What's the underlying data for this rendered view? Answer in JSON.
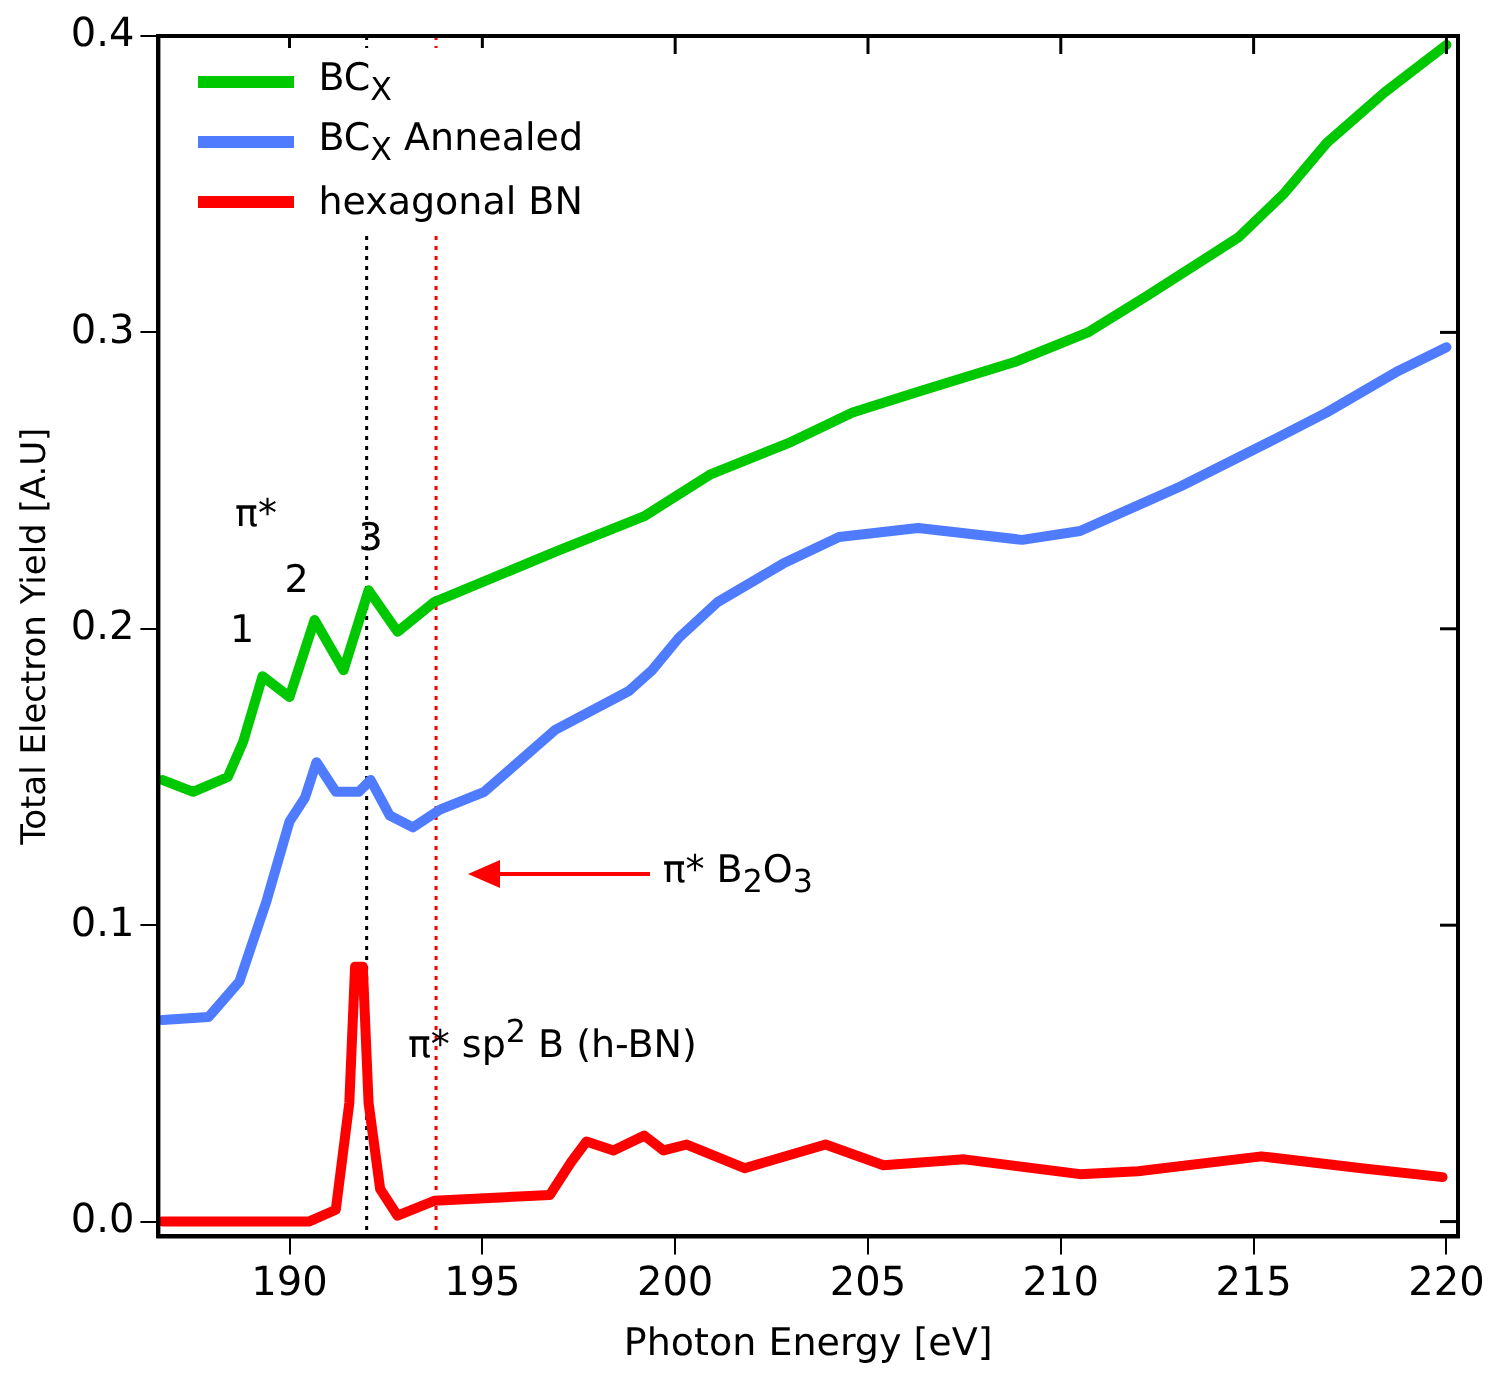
{
  "chart_data": {
    "type": "line",
    "xlabel": "Photon Energy [eV]",
    "ylabel": "Total Electron Yield [A.U]",
    "xlim": [
      186.6,
      220.3
    ],
    "ylim": [
      -0.005,
      0.4
    ],
    "xticks": [
      190,
      195,
      200,
      205,
      210,
      215,
      220
    ],
    "yticks": [
      {
        "value": 0,
        "label": "0.0"
      },
      0.1,
      0.2,
      0.3,
      0.4
    ],
    "grid": false,
    "legend": "top left",
    "marker": "none",
    "line_style": "solid",
    "series": [
      {
        "name": "BC$_{X}$",
        "color": "#00c800",
        "x": [
          186.7,
          187.5,
          188.4,
          188.8,
          189.3,
          190.0,
          190.65,
          191.4,
          192.05,
          192.8,
          193.75,
          196.9,
          199.2,
          200.9,
          203.0,
          204.6,
          206.3,
          208.8,
          210.7,
          212.2,
          214.6,
          215.8,
          216.9,
          218.4,
          220.0
        ],
        "values": [
          0.149,
          0.145,
          0.15,
          0.162,
          0.184,
          0.177,
          0.203,
          0.186,
          0.213,
          0.199,
          0.209,
          0.226,
          0.238,
          0.252,
          0.263,
          0.273,
          0.28,
          0.29,
          0.3,
          0.312,
          0.332,
          0.347,
          0.364,
          0.381,
          0.397
        ]
      },
      {
        "name": "BC$_{X}$ Annealed",
        "color": "#4f7cff",
        "x": [
          186.7,
          187.9,
          188.7,
          189.4,
          190.0,
          190.4,
          190.7,
          191.2,
          191.8,
          192.1,
          192.6,
          193.2,
          193.9,
          195.05,
          196.9,
          198.8,
          199.4,
          200.1,
          201.1,
          202.8,
          204.25,
          206.3,
          209.0,
          210.5,
          213.1,
          215.4,
          216.9,
          218.75,
          220.0
        ],
        "values": [
          0.068,
          0.069,
          0.081,
          0.108,
          0.135,
          0.143,
          0.155,
          0.145,
          0.145,
          0.149,
          0.137,
          0.133,
          0.139,
          0.145,
          0.166,
          0.179,
          0.186,
          0.197,
          0.209,
          0.222,
          0.231,
          0.234,
          0.23,
          0.233,
          0.248,
          0.263,
          0.273,
          0.287,
          0.295
        ]
      },
      {
        "name": "hexagonal BN",
        "color": "#ff0000",
        "x": [
          186.7,
          190.5,
          191.2,
          191.55,
          191.7,
          191.9,
          192.05,
          192.35,
          192.8,
          193.75,
          196.75,
          197.3,
          197.7,
          198.4,
          199.2,
          199.7,
          200.3,
          201.8,
          203.9,
          205.4,
          207.5,
          210.5,
          212.0,
          215.2,
          217.8,
          219.9
        ],
        "values": [
          0.0,
          0.0,
          0.004,
          0.04,
          0.086,
          0.086,
          0.04,
          0.011,
          0.002,
          0.007,
          0.009,
          0.02,
          0.027,
          0.024,
          0.029,
          0.024,
          0.026,
          0.018,
          0.026,
          0.019,
          0.021,
          0.016,
          0.017,
          0.022,
          0.018,
          0.015
        ]
      }
    ],
    "ref_lines": [
      {
        "axis": "x",
        "value": 192,
        "color": "#000000",
        "line_style": "dotted"
      },
      {
        "axis": "x",
        "value": 193.8,
        "color": "#ff0000",
        "line_style": "dotted"
      }
    ],
    "annotations": [
      "π*",
      "1",
      "2",
      "3",
      "π* B$_{2}$O$_{3}$",
      "π* sp$^{2}$ B (h-BN)"
    ]
  }
}
